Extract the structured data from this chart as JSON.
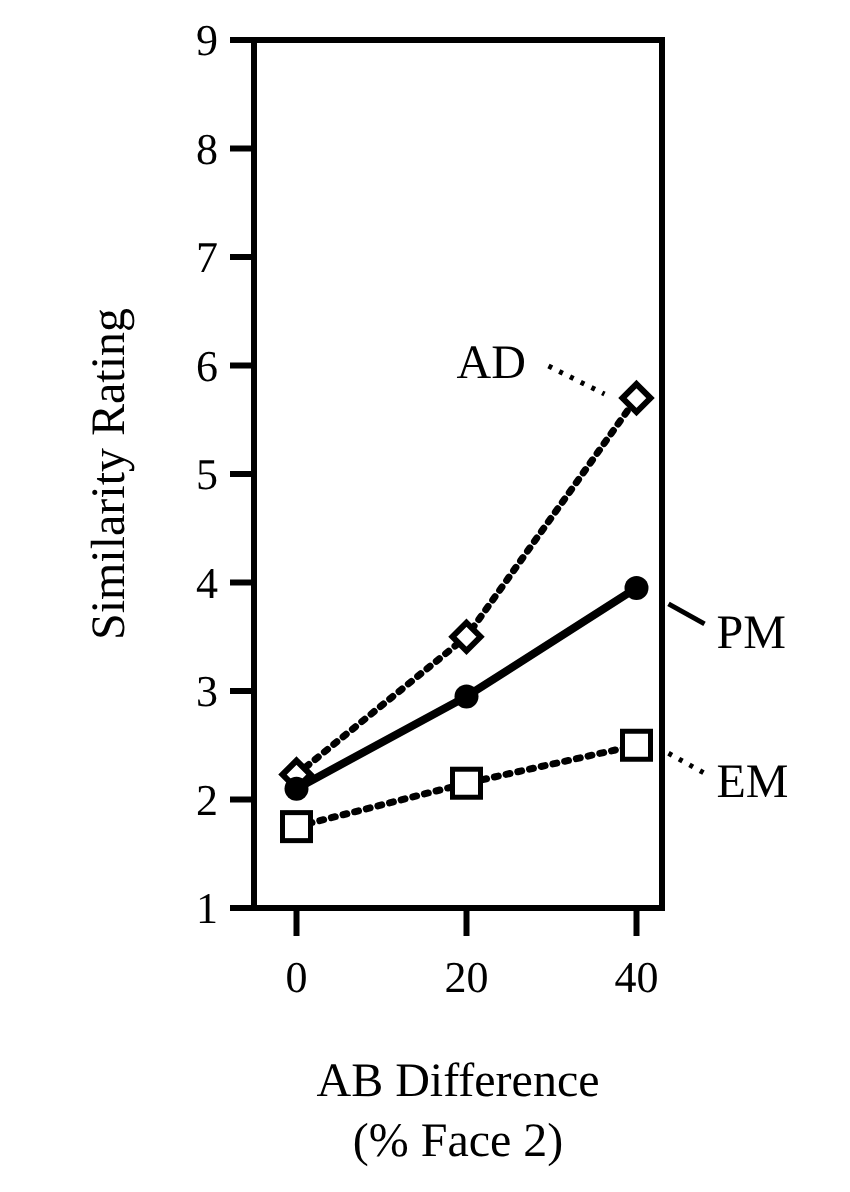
{
  "chart_data": {
    "type": "line",
    "xlabel": "AB Difference\n(% Face 2)",
    "ylabel": "Similarity Rating",
    "x": [
      0,
      20,
      40
    ],
    "xlim": [
      -5,
      43
    ],
    "xticks": [
      0,
      20,
      40
    ],
    "ylim": [
      1,
      9
    ],
    "yticks": [
      1,
      2,
      3,
      4,
      5,
      6,
      7,
      8,
      9
    ],
    "grid": false,
    "legend": "right",
    "series": [
      {
        "name": "AD",
        "color": "#000000",
        "values": [
          2.23,
          3.5,
          5.7
        ],
        "marker": "diamond",
        "line_style": "dotted"
      },
      {
        "name": "PM",
        "color": "#000000",
        "values": [
          2.1,
          2.95,
          3.95
        ],
        "marker": "circle",
        "line_style": "solid"
      },
      {
        "name": "EM",
        "color": "#000000",
        "values": [
          1.75,
          2.15,
          2.5
        ],
        "marker": "square",
        "line_style": "dotted"
      }
    ]
  }
}
